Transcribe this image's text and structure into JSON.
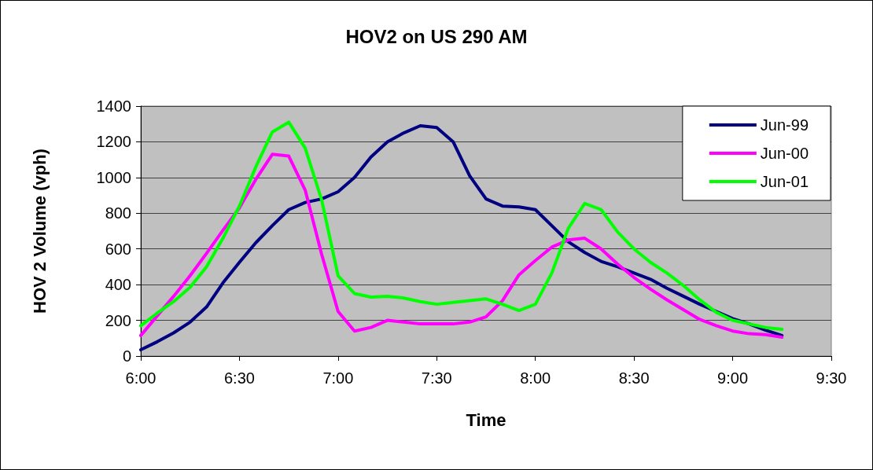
{
  "chart_data": {
    "type": "line",
    "title": "HOV2 on US 290 AM",
    "xlabel": "Time",
    "ylabel": "HOV 2 Volume (vph)",
    "x": [
      6,
      6.0833,
      6.1667,
      6.25,
      6.3333,
      6.4167,
      6.5,
      6.5833,
      6.6667,
      6.75,
      6.8333,
      6.9167,
      7,
      7.0833,
      7.1667,
      7.25,
      7.3333,
      7.4167,
      7.5,
      7.5833,
      7.6667,
      7.75,
      7.8333,
      7.9167,
      8,
      8.0833,
      8.1667,
      8.25,
      8.3333,
      8.4167,
      8.5,
      8.5833,
      8.6667,
      8.75,
      8.8333,
      8.9167,
      9,
      9.0833,
      9.1667,
      9.25
    ],
    "series": [
      {
        "name": "Jun-99",
        "color": "#000080",
        "values": [
          35,
          80,
          130,
          190,
          275,
          410,
          525,
          635,
          730,
          820,
          860,
          880,
          920,
          1000,
          1115,
          1200,
          1250,
          1290,
          1280,
          1200,
          1010,
          880,
          840,
          835,
          820,
          730,
          640,
          580,
          530,
          500,
          465,
          430,
          380,
          335,
          290,
          250,
          210,
          180,
          145,
          115
        ]
      },
      {
        "name": "Jun-00",
        "color": "#ff00ff",
        "values": [
          115,
          225,
          335,
          450,
          575,
          705,
          830,
          990,
          1130,
          1120,
          930,
          570,
          250,
          140,
          160,
          200,
          190,
          180,
          180,
          180,
          190,
          220,
          310,
          455,
          535,
          610,
          650,
          660,
          600,
          515,
          440,
          375,
          315,
          260,
          205,
          170,
          140,
          125,
          120,
          105
        ]
      },
      {
        "name": "Jun-01",
        "color": "#00ff00",
        "values": [
          170,
          240,
          305,
          385,
          500,
          660,
          840,
          1060,
          1255,
          1310,
          1165,
          875,
          450,
          350,
          330,
          335,
          325,
          305,
          290,
          300,
          310,
          320,
          290,
          255,
          290,
          465,
          715,
          855,
          820,
          695,
          600,
          525,
          465,
          395,
          315,
          245,
          200,
          180,
          160,
          150
        ]
      }
    ],
    "xlim": [
      6,
      9.5
    ],
    "xticks": [
      {
        "value": 6,
        "label": "6:00"
      },
      {
        "value": 6.5,
        "label": "6:30"
      },
      {
        "value": 7,
        "label": "7:00"
      },
      {
        "value": 7.5,
        "label": "7:30"
      },
      {
        "value": 8,
        "label": "8:00"
      },
      {
        "value": 8.5,
        "label": "8:30"
      },
      {
        "value": 9,
        "label": "9:00"
      },
      {
        "value": 9.5,
        "label": "9:30"
      }
    ],
    "ylim": [
      0,
      1400
    ],
    "yticks": [
      0,
      200,
      400,
      600,
      800,
      1000,
      1200,
      1400
    ],
    "grid": "y",
    "legend": "top right",
    "marker": "none",
    "line_style": "solid"
  }
}
